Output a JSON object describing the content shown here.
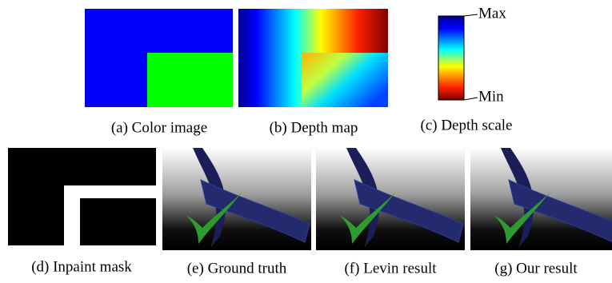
{
  "captions": [
    "(a) Color image",
    "(b) Depth map",
    "(c) Depth scale",
    "(d) Inpaint mask",
    "(e) Ground truth",
    "(f) Levin result",
    "(g) Our result"
  ],
  "scale": {
    "max": "Max",
    "min": "Min"
  }
}
